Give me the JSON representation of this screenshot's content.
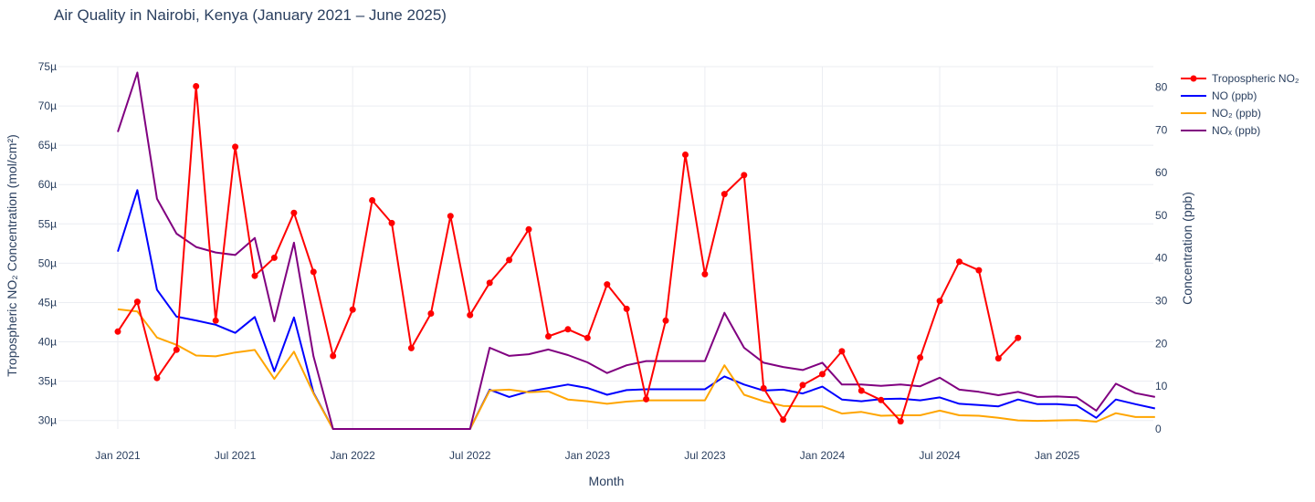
{
  "chart_data": {
    "type": "line",
    "title": "Air Quality in Nairobi, Kenya (January 2021 – June 2025)",
    "xlabel": "Month",
    "ylabel": "Tropospheric NO₂ Concentration (mol/cm²)",
    "y2label": "Concentration (ppb)",
    "x": [
      "2021-01",
      "2021-02",
      "2021-03",
      "2021-04",
      "2021-05",
      "2021-06",
      "2021-07",
      "2021-08",
      "2021-09",
      "2021-10",
      "2021-11",
      "2021-12",
      "2022-01",
      "2022-02",
      "2022-03",
      "2022-04",
      "2022-05",
      "2022-06",
      "2022-07",
      "2022-08",
      "2022-09",
      "2022-10",
      "2022-11",
      "2022-12",
      "2023-01",
      "2023-02",
      "2023-03",
      "2023-04",
      "2023-05",
      "2023-06",
      "2023-07",
      "2023-08",
      "2023-09",
      "2023-10",
      "2023-11",
      "2023-12",
      "2024-01",
      "2024-02",
      "2024-03",
      "2024-04",
      "2024-05",
      "2024-06",
      "2024-07",
      "2024-08",
      "2024-09",
      "2024-10",
      "2024-11",
      "2024-12",
      "2025-01",
      "2025-02",
      "2025-03",
      "2025-04",
      "2025-05",
      "2025-06"
    ],
    "x_ticks": [
      {
        "value": "2021-01",
        "label": "Jan 2021"
      },
      {
        "value": "2021-07",
        "label": "Jul 2021"
      },
      {
        "value": "2022-01",
        "label": "Jan 2022"
      },
      {
        "value": "2022-07",
        "label": "Jul 2022"
      },
      {
        "value": "2023-01",
        "label": "Jan 2023"
      },
      {
        "value": "2023-07",
        "label": "Jul 2023"
      },
      {
        "value": "2024-01",
        "label": "Jan 2024"
      },
      {
        "value": "2024-07",
        "label": "Jul 2024"
      },
      {
        "value": "2025-01",
        "label": "Jan 2025"
      }
    ],
    "ylim": [
      29.5,
      75
    ],
    "y_ticks": [
      30,
      35,
      40,
      45,
      50,
      55,
      60,
      65,
      70,
      75
    ],
    "y_tick_labels": [
      "30µ",
      "35µ",
      "40µ",
      "45µ",
      "50µ",
      "55µ",
      "60µ",
      "65µ",
      "70µ",
      "75µ"
    ],
    "y2lim": [
      0,
      88
    ],
    "y2_ticks": [
      0,
      10,
      20,
      30,
      40,
      50,
      60,
      70,
      80
    ],
    "legend_position": "top-right",
    "grid": true,
    "series": [
      {
        "name": "Tropospheric NO₂",
        "axis": "y",
        "color": "#ff0000",
        "markers": true,
        "values": [
          41.3,
          45.1,
          35.4,
          39.0,
          72.5,
          42.7,
          64.8,
          48.4,
          50.7,
          56.4,
          48.9,
          38.2,
          44.1,
          58.0,
          55.1,
          39.2,
          43.6,
          56.0,
          43.4,
          47.5,
          50.4,
          54.3,
          40.7,
          41.6,
          40.5,
          47.3,
          44.2,
          32.7,
          42.7,
          63.8,
          48.6,
          58.8,
          61.2,
          34.1,
          30.1,
          34.5,
          35.9,
          38.8,
          33.8,
          32.6,
          29.9,
          38.0,
          45.2,
          50.2,
          49.1,
          37.9,
          40.5,
          null,
          null,
          null,
          null,
          null,
          null,
          null
        ]
      },
      {
        "name": "NO (ppb)",
        "axis": "y2",
        "color": "#0000ff",
        "markers": false,
        "values": [
          41.5,
          55.9,
          32.6,
          26.3,
          25.4,
          24.4,
          22.5,
          26.2,
          13.5,
          26.1,
          8.5,
          0,
          0,
          0,
          0,
          0,
          0,
          0,
          0,
          9.2,
          7.5,
          8.8,
          9.6,
          10.4,
          9.6,
          8.0,
          9.1,
          9.3,
          9.3,
          9.3,
          9.3,
          12.3,
          10.4,
          9.0,
          9.2,
          8.3,
          9.9,
          6.9,
          6.5,
          7.0,
          7.1,
          6.7,
          7.4,
          5.9,
          5.6,
          5.3,
          6.9,
          5.8,
          5.8,
          5.5,
          2.6,
          6.9,
          5.8,
          4.8
        ]
      },
      {
        "name": "NO₂ (ppb)",
        "axis": "y2",
        "color": "#ffa500",
        "markers": false,
        "values": [
          28.0,
          27.5,
          21.4,
          19.7,
          17.2,
          17.0,
          17.9,
          18.5,
          11.7,
          18.1,
          8.3,
          0,
          0,
          0,
          0,
          0,
          0,
          0,
          0,
          9.0,
          9.2,
          8.6,
          8.8,
          6.9,
          6.5,
          5.9,
          6.4,
          6.7,
          6.7,
          6.7,
          6.7,
          14.9,
          8.0,
          6.5,
          5.4,
          5.3,
          5.3,
          3.6,
          4.0,
          3.1,
          3.2,
          3.2,
          4.3,
          3.2,
          3.1,
          2.6,
          2.0,
          1.9,
          2.0,
          2.1,
          1.7,
          3.7,
          2.8,
          2.8
        ]
      },
      {
        "name": "NOₓ (ppb)",
        "axis": "y2",
        "color": "#800080",
        "markers": false,
        "values": [
          69.5,
          83.4,
          53.9,
          45.7,
          42.6,
          41.3,
          40.7,
          44.7,
          25.2,
          43.6,
          17.0,
          0,
          0,
          0,
          0,
          0,
          0,
          0,
          0,
          19.0,
          17.1,
          17.5,
          18.6,
          17.3,
          15.6,
          13.1,
          14.9,
          15.9,
          15.9,
          15.9,
          15.9,
          27.2,
          19.0,
          15.5,
          14.5,
          13.8,
          15.5,
          10.4,
          10.4,
          10.1,
          10.4,
          10.0,
          12.0,
          9.2,
          8.7,
          7.9,
          8.7,
          7.5,
          7.6,
          7.4,
          4.3,
          10.6,
          8.4,
          7.5
        ]
      }
    ]
  }
}
